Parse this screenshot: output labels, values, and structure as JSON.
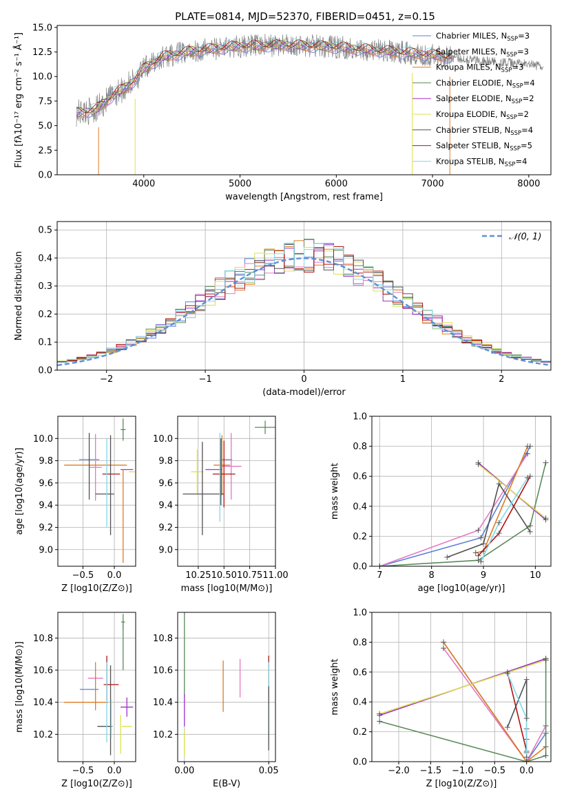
{
  "figure_title": "PLATE=0814, MJD=52370, FIBERID=0451, z=0.15",
  "colors": {
    "Chabrier MILES": "#5b7fd6",
    "Salpeter MILES": "#e377c2",
    "Kroupa MILES": "#e07a20",
    "Chabrier ELODIE": "#5a8a5a",
    "Salpeter ELODIE": "#9b30c8",
    "Kroupa ELODIE": "#dde04a",
    "Chabrier STELIB": "#505050",
    "Salpeter STELIB": "#b01010",
    "Kroupa STELIB": "#80d8e8",
    "data": "#808080",
    "normal": "#5b8fd6"
  },
  "legend_spectrum": [
    {
      "name": "Chabrier MILES",
      "nssp": "3"
    },
    {
      "name": "Salpeter MILES",
      "nssp": "3"
    },
    {
      "name": "Kroupa MILES",
      "nssp": "3"
    },
    {
      "name": "Chabrier ELODIE",
      "nssp": "4"
    },
    {
      "name": "Salpeter ELODIE",
      "nssp": "2"
    },
    {
      "name": "Kroupa ELODIE",
      "nssp": "2"
    },
    {
      "name": "Chabrier STELIB",
      "nssp": "4"
    },
    {
      "name": "Salpeter STELIB",
      "nssp": "5"
    },
    {
      "name": "Kroupa STELIB",
      "nssp": "4"
    }
  ],
  "legend_hist": "𝒩(0, 1)",
  "chart_data": [
    {
      "id": "spectrum",
      "type": "line",
      "title": "PLATE=0814, MJD=52370, FIBERID=0451, z=0.15",
      "xlabel": "wavelength [Angstrom, rest frame]",
      "ylabel": "Flux [fλ10⁻¹⁷ erg cm⁻² s⁻¹ Å⁻¹]",
      "xlim": [
        3100,
        8230
      ],
      "ylim": [
        0,
        15.2
      ],
      "xticks": [
        4000,
        5000,
        6000,
        7000,
        8000
      ],
      "yticks": [
        0.0,
        2.5,
        5.0,
        7.5,
        10.0,
        12.5,
        15.0
      ],
      "continuum": [
        [
          3300,
          6.3
        ],
        [
          3500,
          6.6
        ],
        [
          3600,
          7.4
        ],
        [
          3700,
          8.3
        ],
        [
          3800,
          8.8
        ],
        [
          3900,
          9.6
        ],
        [
          4000,
          10.8
        ],
        [
          4200,
          12.0
        ],
        [
          4500,
          12.6
        ],
        [
          5000,
          13.1
        ],
        [
          5500,
          13.2
        ],
        [
          6000,
          13.0
        ],
        [
          6500,
          12.6
        ],
        [
          7000,
          12.2
        ],
        [
          7500,
          11.6
        ],
        [
          8000,
          11.2
        ],
        [
          8150,
          11.0
        ]
      ],
      "model_range": [
        3300,
        7200
      ]
    },
    {
      "id": "residuals",
      "type": "bar",
      "xlabel": "(data-model)/error",
      "ylabel": "Normed distribution",
      "xlim": [
        -2.5,
        2.5
      ],
      "ylim": [
        0,
        0.53
      ],
      "xticks": [
        -2,
        -1,
        0,
        1,
        2
      ],
      "yticks": [
        0.0,
        0.1,
        0.2,
        0.3,
        0.4,
        0.5
      ],
      "bin_width": 0.1,
      "bin_start": -2.5,
      "reference": "standard normal"
    },
    {
      "id": "age_vs_Z",
      "type": "scatter",
      "xlabel": "Z [log10(Z/Z⊙)]",
      "ylabel": "age  [log10(age/yr)]",
      "xlim": [
        -0.9,
        0.34
      ],
      "ylim": [
        8.85,
        10.2
      ],
      "xticks": [
        -0.5,
        0.0
      ],
      "yticks": [
        9.0,
        9.2,
        9.4,
        9.6,
        9.8,
        10.0
      ],
      "points": [
        {
          "model": "Chabrier MILES",
          "x": -0.4,
          "y": 9.81,
          "xerr": 0.16,
          "yerr": 0.0
        },
        {
          "model": "Salpeter MILES",
          "x": -0.3,
          "y": 9.74,
          "xerr": 0.1,
          "yerr": 0.3
        },
        {
          "model": "Kroupa MILES",
          "x": -0.3,
          "y": 9.76,
          "xerr": 0.5,
          "yerr": 0.0
        },
        {
          "model": "Chabrier ELODIE",
          "x": 0.14,
          "y": 10.08,
          "xerr": 0.04,
          "yerr": 0.1
        },
        {
          "model": "Salpeter ELODIE",
          "x": 0.2,
          "y": 9.72,
          "xerr": 0.1,
          "yerr": 0.0
        },
        {
          "model": "Kroupa ELODIE",
          "x": 0.28,
          "y": 9.7,
          "xerr": 0.05,
          "yerr": 0.0
        },
        {
          "model": "Chabrier STELIB",
          "x": -0.15,
          "y": 9.5,
          "xerr": 0.15,
          "yerr": 0.0
        },
        {
          "model": "Salpeter STELIB",
          "x": -0.05,
          "y": 9.68,
          "xerr": 0.14,
          "yerr": 0.0
        },
        {
          "model": "Kroupa STELIB",
          "x": -0.12,
          "y": 9.6,
          "xerr": 0.0,
          "yerr": 0.4
        },
        {
          "model": "Kroupa MILES",
          "x": 0.14,
          "y": 9.3,
          "xerr": 0.0,
          "yerr": 0.42
        },
        {
          "model": "Chabrier STELIB",
          "x": -0.06,
          "y": 9.58,
          "xerr": 0.0,
          "yerr": 0.45
        },
        {
          "model": "Chabrier STELIB",
          "x": -0.4,
          "y": 9.75,
          "xerr": 0.0,
          "yerr": 0.3
        }
      ]
    },
    {
      "id": "age_vs_mass",
      "type": "scatter",
      "xlabel": "mass [log10(M/M⊙)]",
      "ylabel": "",
      "xlim": [
        10.05,
        11.0
      ],
      "ylim": [
        8.85,
        10.2
      ],
      "xticks": [
        10.25,
        10.5,
        10.75,
        11.0
      ],
      "yticks": [
        9.0,
        9.2,
        9.4,
        9.6,
        9.8,
        10.0
      ],
      "points": [
        {
          "model": "Chabrier MILES",
          "x": 10.52,
          "y": 9.81,
          "xerr": 0.06,
          "yerr": 0.0
        },
        {
          "model": "Salpeter MILES",
          "x": 10.57,
          "y": 9.75,
          "xerr": 0.1,
          "yerr": 0.3
        },
        {
          "model": "Kroupa MILES",
          "x": 10.48,
          "y": 9.76,
          "xerr": 0.08,
          "yerr": 0.27
        },
        {
          "model": "Chabrier ELODIE",
          "x": 10.9,
          "y": 10.1,
          "xerr": 0.1,
          "yerr": 0.06
        },
        {
          "model": "Salpeter ELODIE",
          "x": 10.4,
          "y": 9.72,
          "xerr": 0.08,
          "yerr": 0.0
        },
        {
          "model": "Kroupa ELODIE",
          "x": 10.24,
          "y": 9.7,
          "xerr": 0.06,
          "yerr": 0.2
        },
        {
          "model": "Chabrier STELIB",
          "x": 10.3,
          "y": 9.5,
          "xerr": 0.2,
          "yerr": 0.0
        },
        {
          "model": "Salpeter STELIB",
          "x": 10.5,
          "y": 9.68,
          "xerr": 0.11,
          "yerr": 0.3
        },
        {
          "model": "Kroupa STELIB",
          "x": 10.46,
          "y": 9.65,
          "xerr": 0.0,
          "yerr": 0.4
        },
        {
          "model": "Chabrier STELIB",
          "x": 10.29,
          "y": 9.55,
          "xerr": 0.0,
          "yerr": 0.42
        },
        {
          "model": "Chabrier STELIB",
          "x": 10.47,
          "y": 9.7,
          "xerr": 0.0,
          "yerr": 0.3
        }
      ]
    },
    {
      "id": "mass_weight_vs_age",
      "type": "line",
      "xlabel": "age  [log10(age/yr)]",
      "ylabel": "mass weight",
      "xlim": [
        6.85,
        10.3
      ],
      "ylim": [
        0,
        1
      ],
      "xticks": [
        7,
        8,
        9,
        10
      ],
      "yticks": [
        0.0,
        0.2,
        0.4,
        0.6,
        0.8,
        1.0
      ],
      "series": [
        {
          "model": "Chabrier MILES",
          "x": [
            7.0,
            8.95,
            9.9
          ],
          "y": [
            0.0,
            0.19,
            0.8
          ]
        },
        {
          "model": "Salpeter MILES",
          "x": [
            7.0,
            8.9,
            9.85
          ],
          "y": [
            0.0,
            0.24,
            0.75
          ]
        },
        {
          "model": "Kroupa MILES",
          "x": [
            8.85,
            9.0,
            9.85
          ],
          "y": [
            0.09,
            0.1,
            0.8
          ]
        },
        {
          "model": "Chabrier ELODIE",
          "x": [
            7.0,
            8.9,
            9.9,
            10.2
          ],
          "y": [
            0.0,
            0.04,
            0.27,
            0.69
          ]
        },
        {
          "model": "Salpeter ELODIE",
          "x": [
            8.9,
            10.2
          ],
          "y": [
            0.69,
            0.31
          ]
        },
        {
          "model": "Kroupa ELODIE",
          "x": [
            8.9,
            10.2
          ],
          "y": [
            0.68,
            0.32
          ]
        },
        {
          "model": "Chabrier STELIB",
          "x": [
            8.3,
            9.0,
            9.3,
            9.9
          ],
          "y": [
            0.06,
            0.15,
            0.55,
            0.23
          ]
        },
        {
          "model": "Salpeter STELIB",
          "x": [
            8.9,
            9.3,
            9.9
          ],
          "y": [
            0.07,
            0.22,
            0.6
          ]
        },
        {
          "model": "Kroupa STELIB",
          "x": [
            8.95,
            9.3,
            9.85
          ],
          "y": [
            0.03,
            0.29,
            0.59
          ]
        }
      ]
    },
    {
      "id": "mass_vs_Z",
      "type": "scatter",
      "xlabel": "Z [log10(Z/Z⊙)]",
      "ylabel": "mass [log10(M/M⊙)]",
      "xlim": [
        -0.9,
        0.34
      ],
      "ylim": [
        10.03,
        10.96
      ],
      "yticks": [
        10.2,
        10.4,
        10.6,
        10.8
      ],
      "xticks": [
        -0.5,
        0.0
      ],
      "points": [
        {
          "model": "Chabrier MILES",
          "x": -0.4,
          "y": 10.48,
          "xerr": 0.15,
          "yerr": 0.0
        },
        {
          "model": "Salpeter MILES",
          "x": -0.3,
          "y": 10.55,
          "xerr": 0.12,
          "yerr": 0.0
        },
        {
          "model": "Kroupa MILES",
          "x": -0.45,
          "y": 10.4,
          "xerr": 0.35,
          "yerr": 0.0
        },
        {
          "model": "Kroupa MILES",
          "x": -0.3,
          "y": 10.5,
          "xerr": 0.0,
          "yerr": 0.15
        },
        {
          "model": "Chabrier ELODIE",
          "x": 0.14,
          "y": 10.9,
          "xerr": 0.03,
          "yerr": 0.05
        },
        {
          "model": "Chabrier ELODIE",
          "x": 0.14,
          "y": 10.75,
          "xerr": 0.0,
          "yerr": 0.15
        },
        {
          "model": "Salpeter ELODIE",
          "x": 0.2,
          "y": 10.37,
          "xerr": 0.1,
          "yerr": 0.06
        },
        {
          "model": "Kroupa ELODIE",
          "x": 0.2,
          "y": 10.25,
          "xerr": 0.08,
          "yerr": 0.0
        },
        {
          "model": "Kroupa ELODIE",
          "x": 0.1,
          "y": 10.2,
          "xerr": 0.0,
          "yerr": 0.12
        },
        {
          "model": "Chabrier STELIB",
          "x": -0.15,
          "y": 10.25,
          "xerr": 0.12,
          "yerr": 0.0
        },
        {
          "model": "Chabrier STELIB",
          "x": -0.06,
          "y": 10.35,
          "xerr": 0.0,
          "yerr": 0.28
        },
        {
          "model": "Salpeter STELIB",
          "x": -0.05,
          "y": 10.51,
          "xerr": 0.12,
          "yerr": 0.0
        },
        {
          "model": "Salpeter STELIB",
          "x": -0.12,
          "y": 10.55,
          "xerr": 0.0,
          "yerr": 0.14
        },
        {
          "model": "Kroupa STELIB",
          "x": -0.12,
          "y": 10.4,
          "xerr": 0.0,
          "yerr": 0.25
        },
        {
          "model": "Kroupa STELIB",
          "x": -0.05,
          "y": 10.3,
          "xerr": 0.0,
          "yerr": 0.12
        }
      ]
    },
    {
      "id": "mass_vs_EBV",
      "type": "scatter",
      "xlabel": "E(B-V)",
      "ylabel": "",
      "xlim": [
        -0.004,
        0.054
      ],
      "ylim": [
        10.03,
        10.96
      ],
      "xticks": [
        0.0,
        0.05
      ],
      "yticks": [
        10.2,
        10.4,
        10.6,
        10.8
      ],
      "points": [
        {
          "model": "Chabrier ELODIE",
          "x": 0.0,
          "y": 10.7,
          "xerr": 0.0,
          "yerr": 0.27
        },
        {
          "model": "Salpeter ELODIE",
          "x": 0.0,
          "y": 10.35,
          "xerr": 0.0,
          "yerr": 0.1
        },
        {
          "model": "Kroupa ELODIE",
          "x": 0.0,
          "y": 10.15,
          "xerr": 0.0,
          "yerr": 0.08
        },
        {
          "model": "Kroupa MILES",
          "x": 0.023,
          "y": 10.5,
          "xerr": 0.0,
          "yerr": 0.16
        },
        {
          "model": "Salpeter MILES",
          "x": 0.033,
          "y": 10.55,
          "xerr": 0.0,
          "yerr": 0.12
        },
        {
          "model": "Salpeter STELIB",
          "x": 0.05,
          "y": 10.55,
          "xerr": 0.0,
          "yerr": 0.14
        },
        {
          "model": "Kroupa STELIB",
          "x": 0.05,
          "y": 10.4,
          "xerr": 0.0,
          "yerr": 0.25
        },
        {
          "model": "Chabrier STELIB",
          "x": 0.05,
          "y": 10.3,
          "xerr": 0.0,
          "yerr": 0.2
        }
      ]
    },
    {
      "id": "mass_weight_vs_Z",
      "type": "line",
      "xlabel": "Z [log10(Z/Z⊙)]",
      "ylabel": "mass weight",
      "xlim": [
        -2.42,
        0.38
      ],
      "ylim": [
        0,
        1
      ],
      "xticks": [
        -2.0,
        -1.5,
        -1.0,
        -0.5,
        0.0
      ],
      "yticks": [
        0.0,
        0.2,
        0.4,
        0.6,
        0.8,
        1.0
      ],
      "series": [
        {
          "model": "Chabrier MILES",
          "x": [
            -1.3,
            0.0,
            0.3
          ],
          "y": [
            0.8,
            0.0,
            0.19
          ]
        },
        {
          "model": "Salpeter MILES",
          "x": [
            -1.3,
            0.0,
            0.3
          ],
          "y": [
            0.76,
            0.0,
            0.24
          ]
        },
        {
          "model": "Kroupa MILES",
          "x": [
            -1.3,
            0.0,
            0.3
          ],
          "y": [
            0.8,
            0.0,
            0.1
          ]
        },
        {
          "model": "Chabrier ELODIE",
          "x": [
            -2.3,
            0.0,
            0.3,
            0.3
          ],
          "y": [
            0.27,
            0.0,
            0.04,
            0.69
          ]
        },
        {
          "model": "Salpeter ELODIE",
          "x": [
            -2.3,
            0.3
          ],
          "y": [
            0.31,
            0.69
          ]
        },
        {
          "model": "Kroupa ELODIE",
          "x": [
            -2.3,
            0.3
          ],
          "y": [
            0.32,
            0.68
          ]
        },
        {
          "model": "Chabrier STELIB",
          "x": [
            -0.3,
            0.0,
            0.0,
            0.0
          ],
          "y": [
            0.23,
            0.55,
            0.15,
            0.06
          ]
        },
        {
          "model": "Salpeter STELIB",
          "x": [
            -0.3,
            0.0,
            0.0
          ],
          "y": [
            0.6,
            0.07,
            0.22
          ]
        },
        {
          "model": "Kroupa STELIB",
          "x": [
            -0.3,
            0.0,
            0.0
          ],
          "y": [
            0.59,
            0.29,
            0.03
          ]
        }
      ]
    }
  ]
}
